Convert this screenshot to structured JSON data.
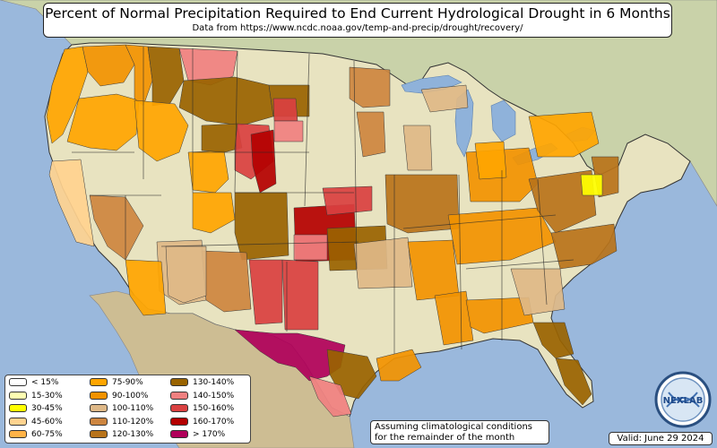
{
  "title": "Percent of Normal Precipitation Required to End Current Hydrological Drought in 6 Months",
  "subtitle": "Data from https://www.ncdc.noaa.gov/temp-and-precip/drought/recovery/",
  "note_lines": [
    "Assuming climatological conditions",
    "for the remainder of the month"
  ],
  "valid": "Valid: June 29 2024",
  "logo_text": "NEXLAB",
  "colors": {
    "ocean": "#9ab8dc",
    "land": "#e8e3c0",
    "canada": "#c9d2a9",
    "mexico": "#cdbd93",
    "lake": "#8fb2da",
    "border": "#333333"
  },
  "legend": [
    {
      "label": "< 15%",
      "color": "#ffffff"
    },
    {
      "label": "15-30%",
      "color": "#ffffb2"
    },
    {
      "label": "30-45%",
      "color": "#ffff00"
    },
    {
      "label": "45-60%",
      "color": "#ffd38f"
    },
    {
      "label": "60-75%",
      "color": "#ffb347"
    },
    {
      "label": "75-90%",
      "color": "#ffa500"
    },
    {
      "label": "90-100%",
      "color": "#f29200"
    },
    {
      "label": "100-110%",
      "color": "#deb887"
    },
    {
      "label": "110-120%",
      "color": "#cd853f"
    },
    {
      "label": "120-130%",
      "color": "#b8731a"
    },
    {
      "label": "130-140%",
      "color": "#996300"
    },
    {
      "label": "140-150%",
      "color": "#f08080"
    },
    {
      "label": "150-160%",
      "color": "#d94040"
    },
    {
      "label": "160-170%",
      "color": "#b40000"
    },
    {
      "label": "> 170%",
      "color": "#b0005a"
    }
  ],
  "regions": [
    {
      "name": "pacific-northwest-coast",
      "level": 5
    },
    {
      "name": "oregon-interior",
      "level": 5
    },
    {
      "name": "washington-cascades",
      "level": 6
    },
    {
      "name": "idaho-panhandle",
      "level": 6
    },
    {
      "name": "montana-west",
      "level": 10
    },
    {
      "name": "montana-north",
      "level": 11
    },
    {
      "name": "montana-central",
      "level": 10
    },
    {
      "name": "idaho-central",
      "level": 5
    },
    {
      "name": "northern-california",
      "level": 3
    },
    {
      "name": "nevada-west",
      "level": 8
    },
    {
      "name": "utah-north",
      "level": 5
    },
    {
      "name": "wyoming-west",
      "level": 10
    },
    {
      "name": "wyoming-east",
      "level": 12
    },
    {
      "name": "wyoming-southeast",
      "level": 13
    },
    {
      "name": "dakota-west",
      "level": 10
    },
    {
      "name": "south-dakota-red",
      "level": 12
    },
    {
      "name": "south-dakota-pink",
      "level": 11
    },
    {
      "name": "north-dakota-east",
      "level": 8
    },
    {
      "name": "minnesota-west",
      "level": 8
    },
    {
      "name": "colorado-west",
      "level": 5
    },
    {
      "name": "colorado-east",
      "level": 10
    },
    {
      "name": "kansas",
      "level": 13
    },
    {
      "name": "nebraska-south",
      "level": 12
    },
    {
      "name": "oklahoma-panhandle",
      "level": 11
    },
    {
      "name": "oklahoma-central",
      "level": 10
    },
    {
      "name": "new-mexico-west",
      "level": 7
    },
    {
      "name": "new-mexico-central",
      "level": 8
    },
    {
      "name": "new-mexico-east",
      "level": 12
    },
    {
      "name": "texas-panhandle",
      "level": 12
    },
    {
      "name": "arizona-south",
      "level": 5
    },
    {
      "name": "arizona-east",
      "level": 7
    },
    {
      "name": "southwest-texas",
      "level": 14
    },
    {
      "name": "south-texas",
      "level": 10
    },
    {
      "name": "texas-coast",
      "level": 6
    },
    {
      "name": "south-texas-tip",
      "level": 11
    },
    {
      "name": "iowa-missouri",
      "level": 9
    },
    {
      "name": "missouri-south",
      "level": 7
    },
    {
      "name": "arkansas-louisiana",
      "level": 6
    },
    {
      "name": "mississippi-valley",
      "level": 6
    },
    {
      "name": "gulf-coast",
      "level": 6
    },
    {
      "name": "ohio-valley",
      "level": 6
    },
    {
      "name": "kentucky-tennessee",
      "level": 6
    },
    {
      "name": "appalachia",
      "level": 9
    },
    {
      "name": "mid-atlantic",
      "level": 9
    },
    {
      "name": "carolinas",
      "level": 9
    },
    {
      "name": "georgia",
      "level": 7
    },
    {
      "name": "florida-north",
      "level": 10
    },
    {
      "name": "florida-south",
      "level": 10
    },
    {
      "name": "new-york-pennsylvania",
      "level": 5
    },
    {
      "name": "michigan-lower",
      "level": 5
    },
    {
      "name": "virginia-dc",
      "level": 2
    },
    {
      "name": "michigan-upper",
      "level": 7
    },
    {
      "name": "wisconsin-east",
      "level": 7
    }
  ]
}
